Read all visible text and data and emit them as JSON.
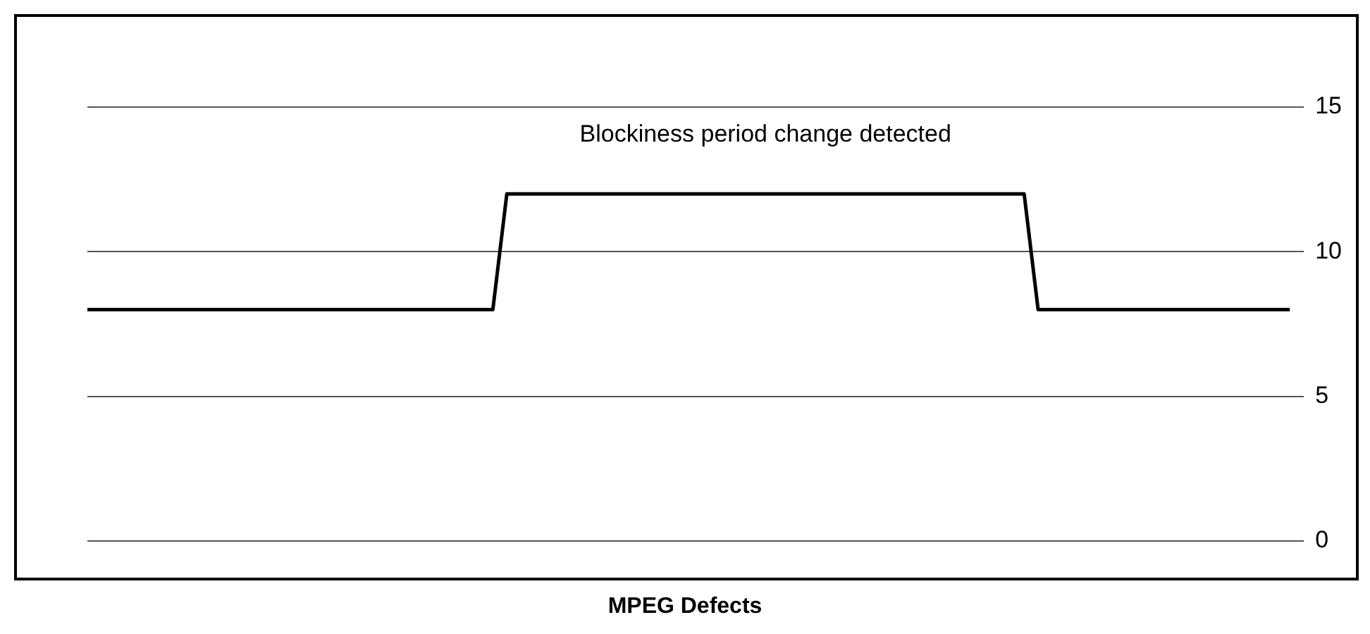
{
  "chart_data": {
    "type": "line",
    "title": "MPEG Defects",
    "annotations": [
      "Blockiness period change detected"
    ],
    "categories": [
      null,
      null,
      null,
      null,
      null,
      null,
      null,
      null,
      null,
      null,
      null,
      null,
      null,
      null,
      null,
      null,
      null,
      null,
      null,
      null,
      null,
      null,
      null,
      null,
      null,
      null,
      null,
      null,
      null,
      null,
      null,
      null,
      null,
      null,
      null,
      null,
      null,
      null,
      null,
      null,
      null,
      null,
      null,
      null,
      null,
      null,
      null,
      null,
      null,
      null,
      null,
      null,
      null,
      null,
      null,
      null,
      null,
      null,
      null,
      null,
      null,
      null,
      null,
      null,
      null,
      null,
      null,
      null,
      null,
      null,
      null,
      null,
      null,
      null,
      null,
      null,
      null,
      null,
      null,
      null,
      null,
      null,
      null,
      null,
      null,
      null,
      null
    ],
    "values": [
      8,
      8,
      8,
      8,
      8,
      8,
      8,
      8,
      8,
      8,
      8,
      8,
      8,
      8,
      8,
      8,
      8,
      8,
      8,
      8,
      8,
      8,
      8,
      8,
      8,
      8,
      8,
      8,
      8,
      8,
      12,
      12,
      12,
      12,
      12,
      12,
      12,
      12,
      12,
      12,
      12,
      12,
      12,
      12,
      12,
      12,
      12,
      12,
      12,
      12,
      12,
      12,
      12,
      12,
      12,
      12,
      12,
      12,
      12,
      12,
      12,
      12,
      12,
      12,
      12,
      12,
      12,
      12,
      8,
      8,
      8,
      8,
      8,
      8,
      8,
      8,
      8,
      8,
      8,
      8,
      8,
      8,
      8,
      8,
      8,
      8,
      8
    ],
    "color": "#000000",
    "ylim": [
      0,
      15
    ],
    "yticks": [
      0,
      5,
      10,
      15
    ],
    "grid": "y",
    "marker": "none",
    "line_style": "solid",
    "tick_labels": "y"
  }
}
